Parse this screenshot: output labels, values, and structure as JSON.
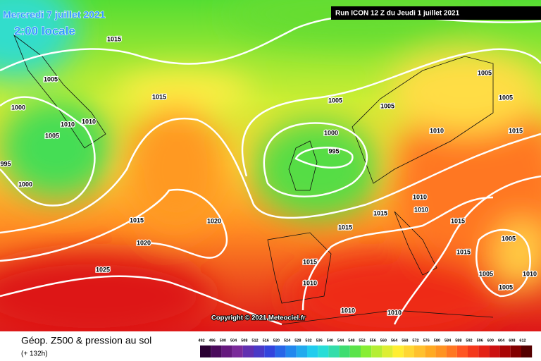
{
  "header": {
    "date": "Mercredi 7 juillet 2021",
    "time": "2:00 locale",
    "run": "Run ICON 12 Z du Jeudi 1 juillet 2021"
  },
  "copyright": "Copyright © 2021 Meteociel.fr",
  "footer": {
    "title": "Géop. Z500 & pression au sol",
    "lead": "(+ 132h)"
  },
  "legend": [
    492,
    496,
    500,
    504,
    508,
    512,
    516,
    520,
    524,
    528,
    532,
    536,
    540,
    544,
    548,
    552,
    556,
    560,
    564,
    568,
    572,
    576,
    580,
    584,
    588,
    592,
    596,
    600,
    604,
    608,
    612
  ],
  "isobar_labels": [
    "1015",
    "1005",
    "1000",
    "1010",
    "1010",
    "1005",
    "995",
    "1000",
    "1015",
    "1005",
    "1000",
    "995",
    "1005",
    "1005",
    "1005",
    "1010",
    "1015",
    "1010",
    "1010",
    "1015",
    "1015",
    "1015",
    "1020",
    "1020",
    "1025",
    "1015",
    "1010",
    "1010",
    "1010",
    "1015",
    "1005",
    "1005",
    "1005",
    "1010",
    "1015"
  ]
}
